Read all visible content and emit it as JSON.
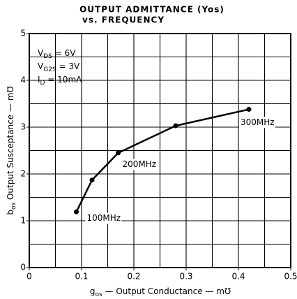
{
  "chart_data": {
    "type": "line",
    "title": "OUTPUT ADMITTANCE (Yos)",
    "subtitle": "vs. FREQUENCY",
    "x_label": [
      "g",
      "os",
      " — Output Conductance — m℧"
    ],
    "y_label": [
      "b",
      "os",
      "  Output Susceptance — m℧"
    ],
    "x": [
      0.09,
      0.12,
      0.17,
      0.28,
      0.42
    ],
    "series": [
      {
        "name": "Yos",
        "color": "#000000",
        "values": [
          1.19,
          1.87,
          2.45,
          3.03,
          3.38
        ]
      }
    ],
    "xlim": [
      0,
      0.5
    ],
    "ylim": [
      0,
      5
    ],
    "xticks": [
      0,
      0.1,
      0.2,
      0.3,
      0.4,
      0.5
    ],
    "yticks": [
      0,
      1,
      2,
      3,
      4,
      5
    ],
    "xgrid": [
      0.05,
      0.1,
      0.15,
      0.2,
      0.25,
      0.3,
      0.35,
      0.4,
      0.45
    ],
    "ygrid": [
      0.5,
      1,
      1.5,
      2,
      2.5,
      3,
      3.5,
      4,
      4.5
    ],
    "grid": true,
    "conditions": [
      [
        "V",
        "DS",
        " = 6V"
      ],
      [
        "V",
        "G2S",
        " = 3V"
      ],
      [
        "I",
        "D",
        " = 10mA"
      ]
    ],
    "annotations": [
      {
        "text": "100MHz",
        "x": 0.11,
        "y": 1.05
      },
      {
        "text": "200MHz",
        "x": 0.178,
        "y": 2.2
      },
      {
        "text": "300MHz",
        "x": 0.404,
        "y": 3.1
      }
    ]
  }
}
